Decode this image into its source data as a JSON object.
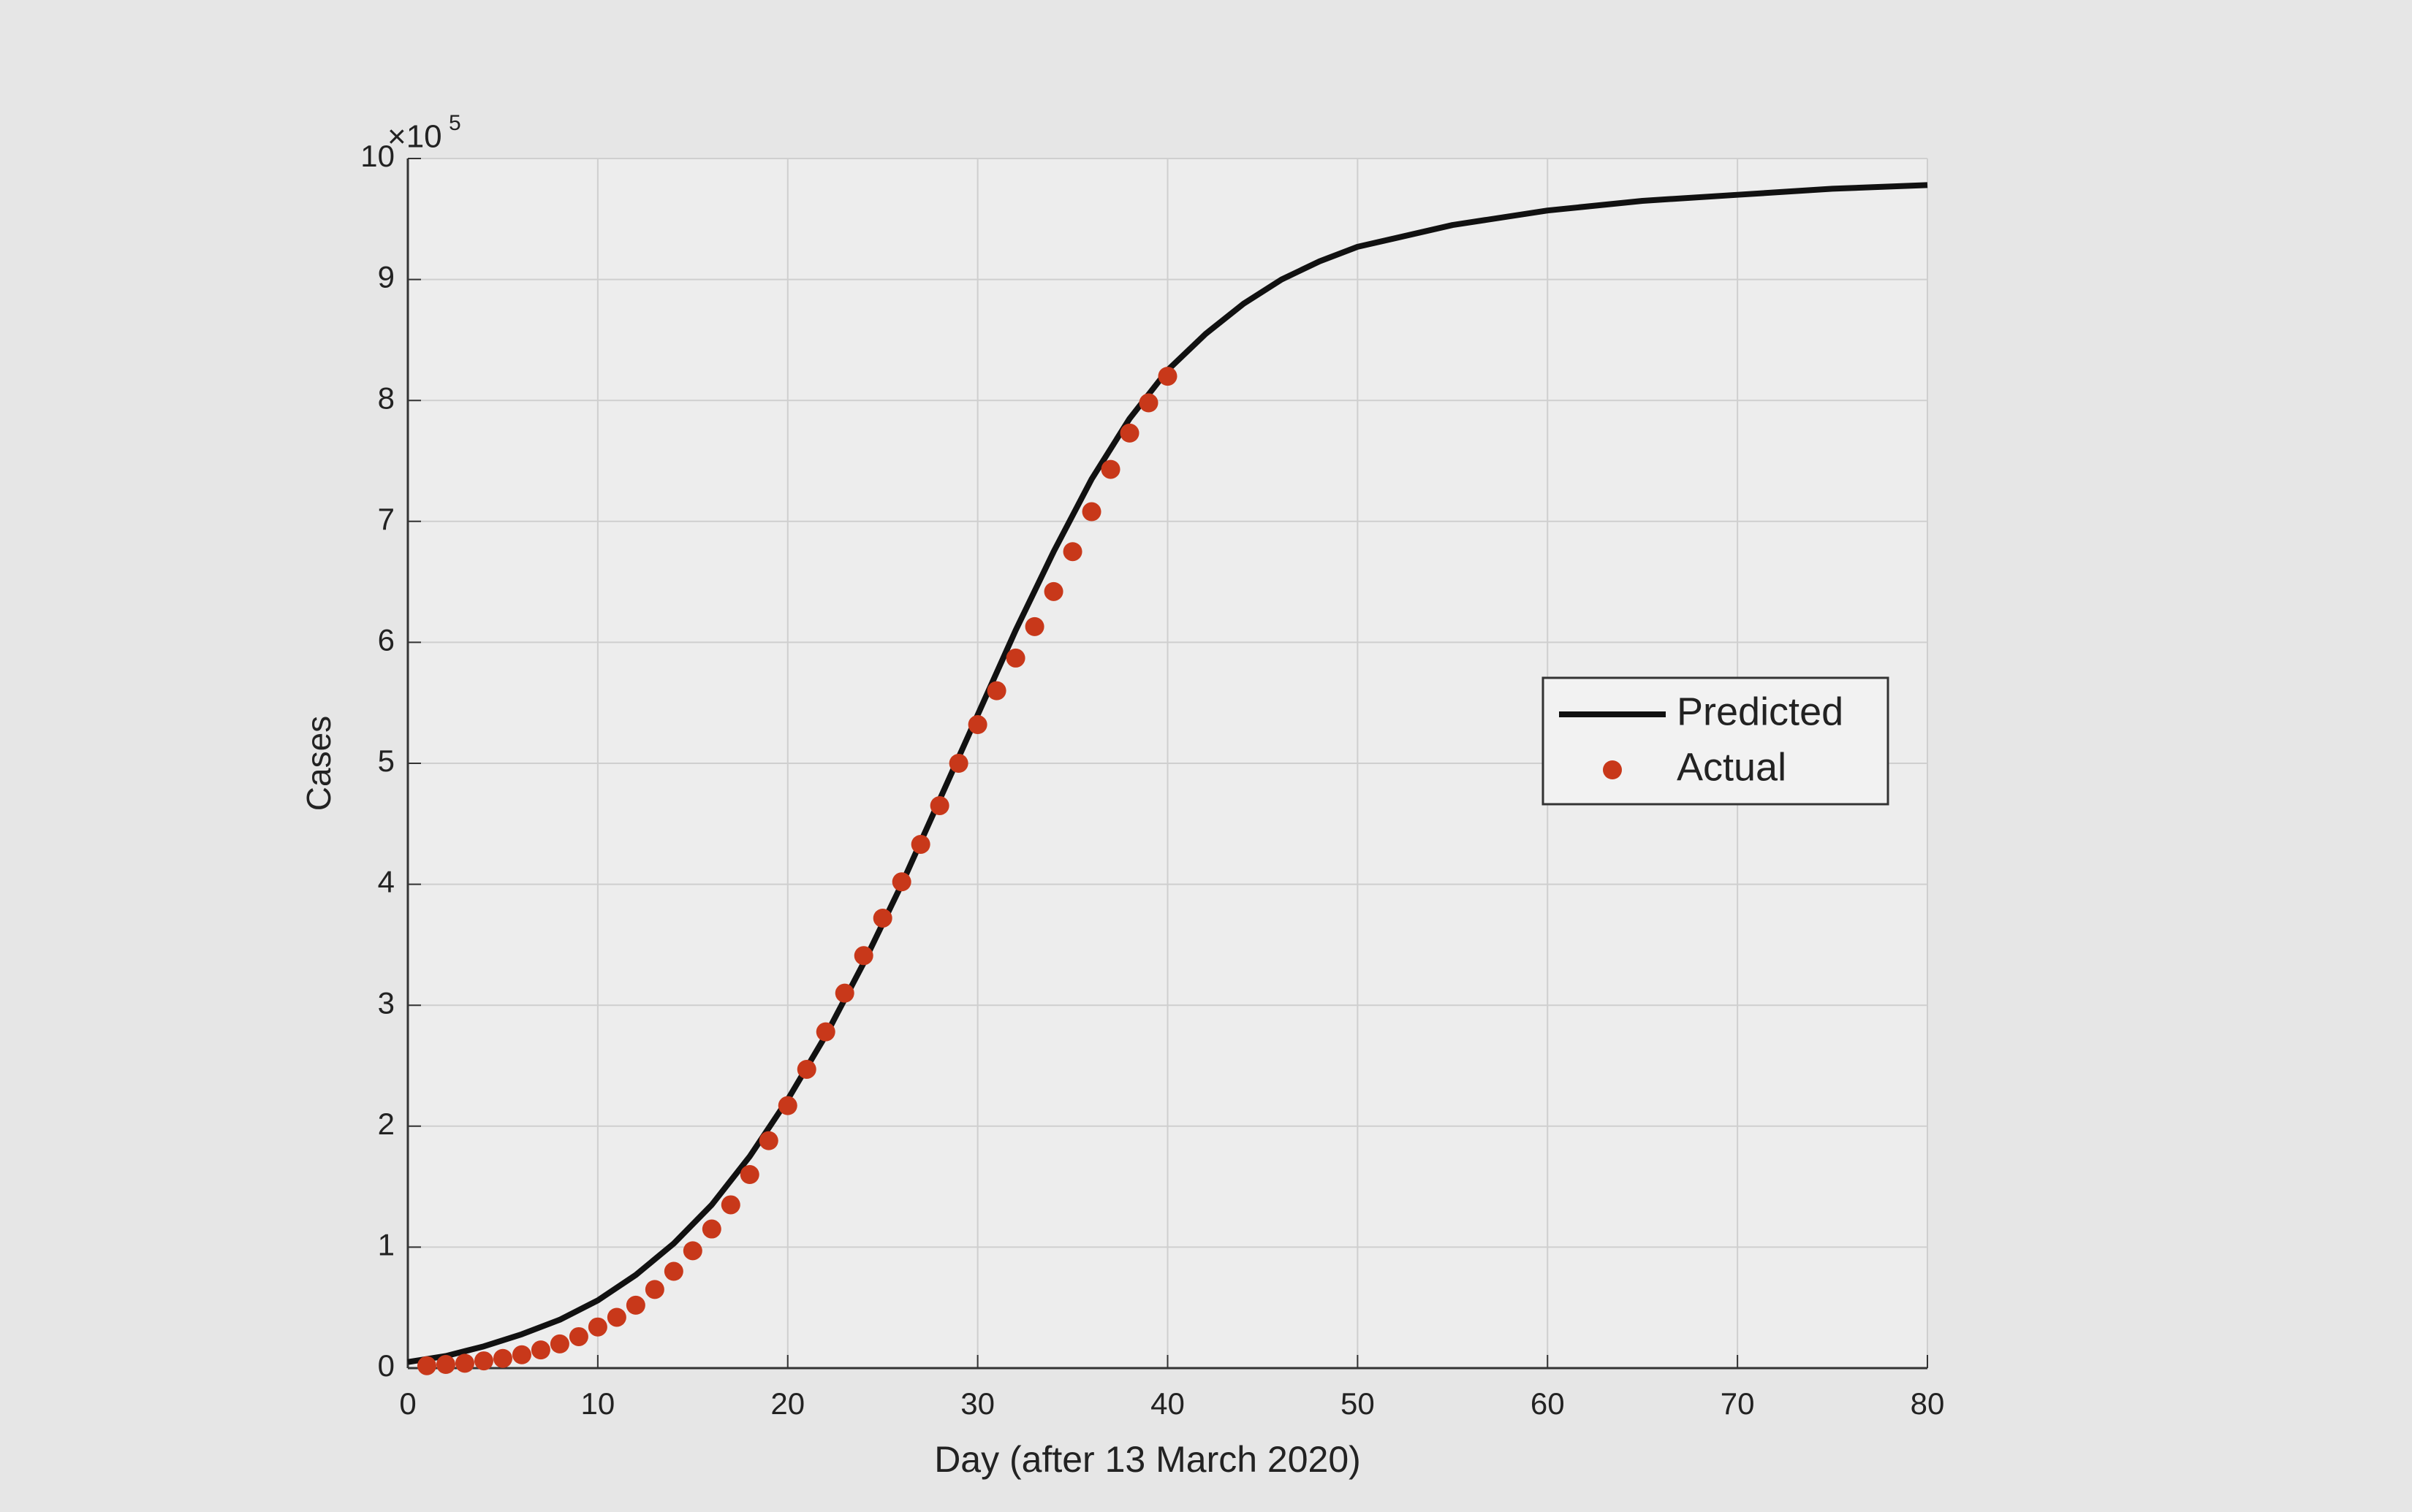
{
  "chart_data": {
    "type": "line",
    "xlabel": "Day (after 13 March 2020)",
    "ylabel": "Cases",
    "y_scale_label": "×10",
    "y_scale_exponent": "5",
    "xlim": [
      0,
      80
    ],
    "xticks": [
      0,
      10,
      20,
      30,
      40,
      50,
      60,
      70,
      80
    ],
    "ylim": [
      0,
      10
    ],
    "yticks": [
      0,
      1,
      2,
      3,
      4,
      5,
      6,
      7,
      8,
      9,
      10
    ],
    "grid": true,
    "legend": "right",
    "series": [
      {
        "name": "Predicted",
        "color": "#111111",
        "style": "line",
        "x": [
          0,
          2,
          4,
          6,
          8,
          10,
          12,
          14,
          16,
          18,
          20,
          22,
          24,
          26,
          28,
          30,
          32,
          34,
          36,
          38,
          40,
          42,
          44,
          46,
          48,
          50,
          55,
          60,
          65,
          70,
          75,
          80
        ],
        "values": [
          0.05,
          0.1,
          0.18,
          0.28,
          0.4,
          0.56,
          0.77,
          1.03,
          1.35,
          1.75,
          2.22,
          2.75,
          3.35,
          4.0,
          4.7,
          5.4,
          6.1,
          6.75,
          7.35,
          7.85,
          8.25,
          8.55,
          8.8,
          9.0,
          9.15,
          9.27,
          9.45,
          9.57,
          9.65,
          9.7,
          9.75,
          9.78
        ]
      },
      {
        "name": "Actual",
        "color": "#c8381a",
        "style": "markers",
        "x": [
          1,
          2,
          3,
          4,
          5,
          6,
          7,
          8,
          9,
          10,
          11,
          12,
          13,
          14,
          15,
          16,
          17,
          18,
          19,
          20,
          21,
          22,
          23,
          24,
          25,
          26,
          27,
          28,
          29,
          30,
          31,
          32,
          33,
          34,
          35,
          36,
          37,
          38,
          39,
          40
        ],
        "values": [
          0.02,
          0.03,
          0.04,
          0.06,
          0.08,
          0.11,
          0.15,
          0.2,
          0.26,
          0.34,
          0.42,
          0.52,
          0.65,
          0.8,
          0.97,
          1.15,
          1.35,
          1.6,
          1.88,
          2.17,
          2.47,
          2.78,
          3.1,
          3.41,
          3.72,
          4.02,
          4.33,
          4.65,
          5.0,
          5.32,
          5.6,
          5.87,
          6.13,
          6.42,
          6.75,
          7.08,
          7.43,
          7.73,
          7.98,
          8.2
        ]
      }
    ]
  }
}
